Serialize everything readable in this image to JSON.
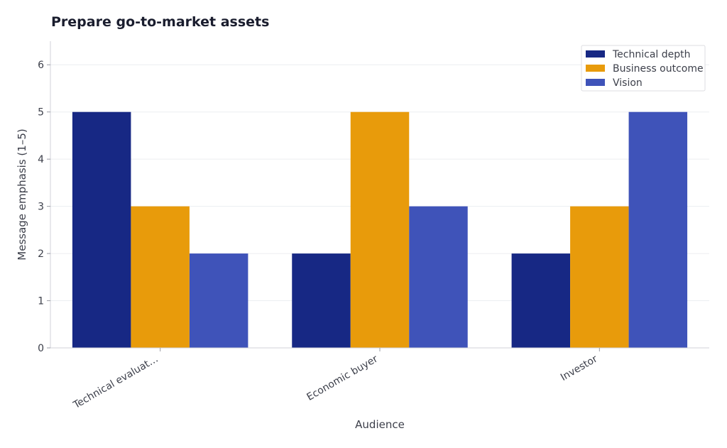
{
  "chart_data": {
    "type": "bar",
    "title": "Prepare go-to-market assets",
    "xlabel": "Audience",
    "ylabel": "Message emphasis (1–5)",
    "categories": [
      "Technical evaluat…",
      "Economic buyer",
      "Investor"
    ],
    "series": [
      {
        "name": "Technical depth",
        "color": "#172884",
        "values": [
          5,
          2,
          2
        ]
      },
      {
        "name": "Business outcome",
        "color": "#E89B0B",
        "values": [
          3,
          5,
          3
        ]
      },
      {
        "name": "Vision",
        "color": "#3F53B9",
        "values": [
          2,
          3,
          5
        ]
      }
    ],
    "ylim": [
      0,
      6.5
    ],
    "yticks": [
      0,
      1,
      2,
      3,
      4,
      5,
      6
    ],
    "grid": true,
    "legend_position": "top-right"
  }
}
